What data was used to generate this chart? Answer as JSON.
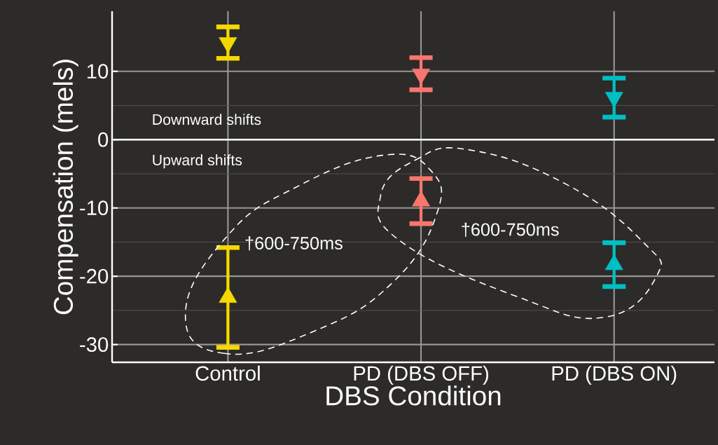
{
  "chart_data": {
    "type": "scatter",
    "xlabel": "DBS Condition",
    "ylabel": "Compensation (mels)",
    "categories": [
      "Control",
      "PD (DBS OFF)",
      "PD (DBS ON)"
    ],
    "series": [
      {
        "marker": "triangle down",
        "colors": [
          "#f5d800",
          "#f8766d",
          "#00bfc4"
        ],
        "values": [
          14.2,
          9.6,
          6.2
        ],
        "errors": [
          [
            11.9,
            16.5
          ],
          [
            7.3,
            12.0
          ],
          [
            3.3,
            9.0
          ]
        ]
      },
      {
        "marker": "triangle",
        "colors": [
          "#f5d800",
          "#f8766d",
          "#00bfc4"
        ],
        "values": [
          -23.1,
          -9.0,
          -18.3
        ],
        "errors": [
          [
            -30.4,
            -15.8
          ],
          [
            -12.3,
            -5.7
          ],
          [
            -21.5,
            -15.1
          ]
        ]
      }
    ],
    "ylim": [
      -32.6,
      18.8
    ],
    "yticks": [
      10,
      0,
      -10,
      -20,
      -30
    ],
    "grid": true,
    "ref_lines": [
      {
        "axis": "y",
        "value": 0,
        "color": "#ffffff"
      }
    ],
    "annotations": [
      "Downward shifts",
      "Upward shifts",
      "†600-750ms",
      "†600-750ms"
    ]
  }
}
